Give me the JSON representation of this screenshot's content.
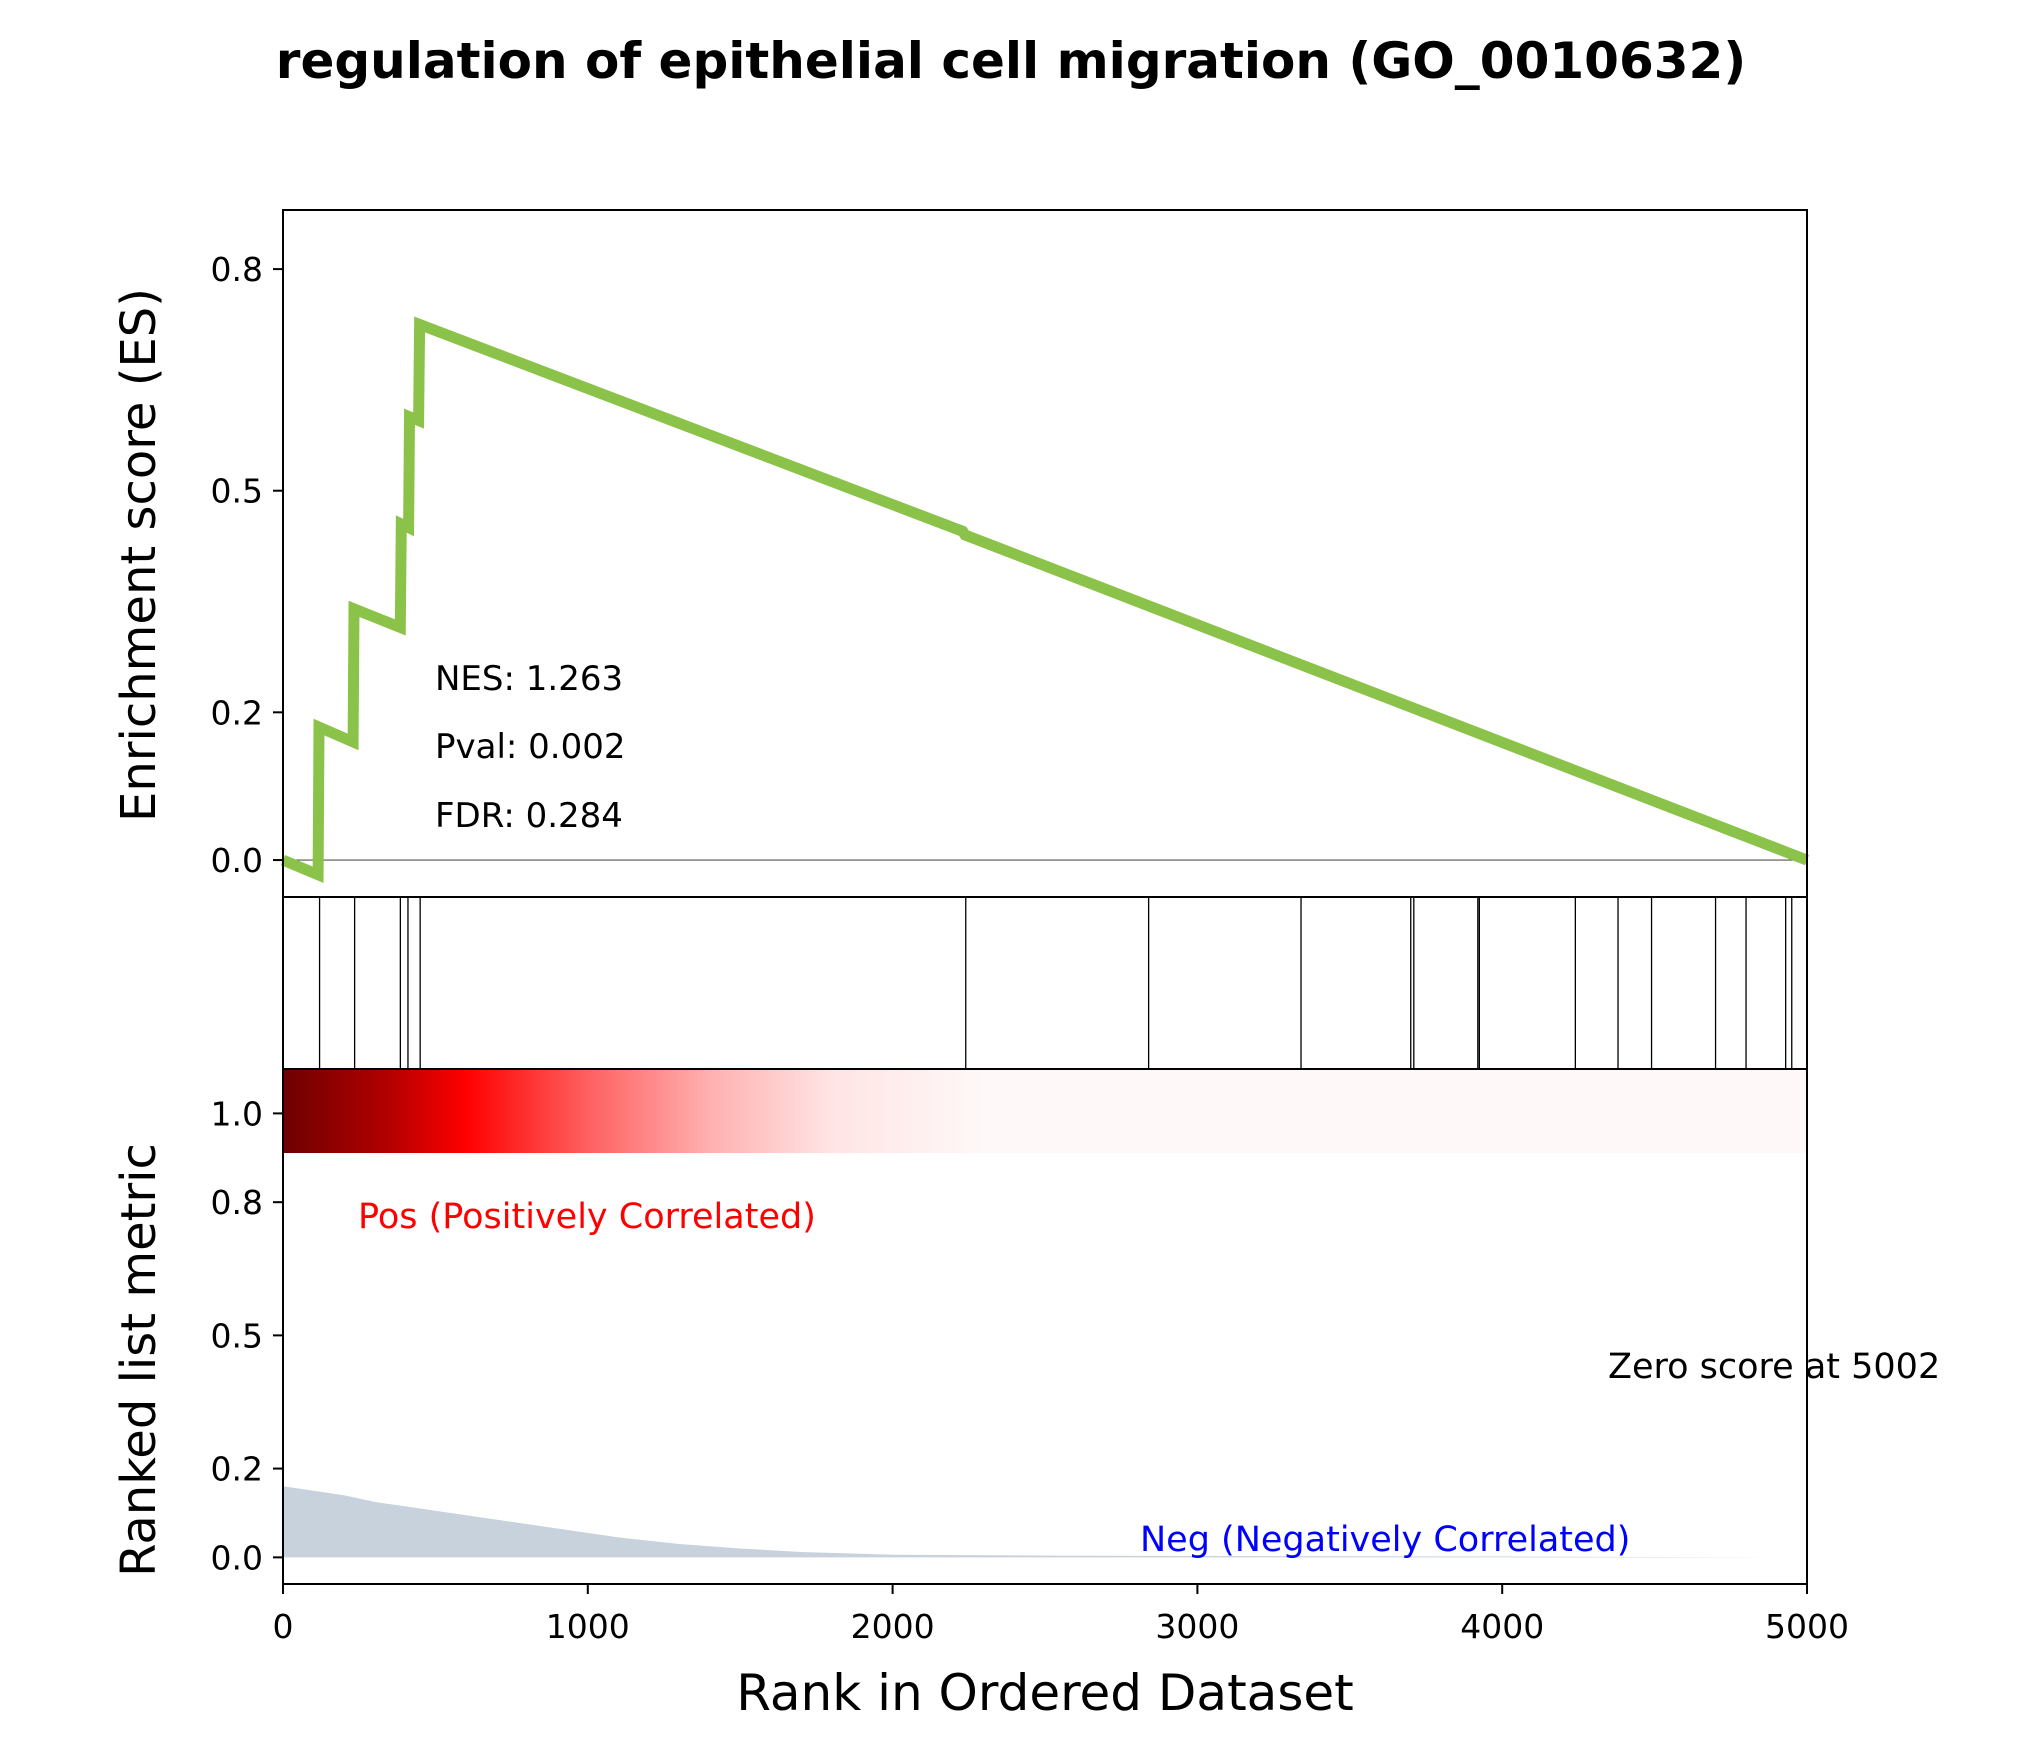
{
  "chart_data": {
    "type": "line",
    "title": "regulation of epithelial cell migration (GO_0010632)",
    "xlabel": "Rank in Ordered Dataset",
    "xlim": [
      0,
      5000
    ],
    "xticks": [
      0,
      1000,
      2000,
      3000,
      4000,
      5000
    ],
    "es_panel": {
      "ylabel": "Enrichment score (ES)",
      "ylim": [
        -0.05,
        0.88
      ],
      "yticks": [
        0.0,
        0.2,
        0.5,
        0.8
      ],
      "ytick_labels": [
        "0.0",
        "0.2",
        "0.5",
        "0.8"
      ],
      "baseline": 0.0,
      "line_color": "#8bc34a",
      "series": [
        {
          "x": [
            0,
            115,
            118,
            230,
            233,
            385,
            388,
            412,
            415,
            445,
            448,
            2230,
            2238,
            5000
          ],
          "y": [
            0.0,
            -0.02,
            0.18,
            0.16,
            0.34,
            0.315,
            0.455,
            0.45,
            0.6,
            0.595,
            0.725,
            0.445,
            0.44,
            0.0
          ]
        }
      ],
      "annotations": [
        "NES: 1.263",
        "Pval: 0.002",
        "FDR: 0.284"
      ]
    },
    "hits": [
      120,
      235,
      385,
      410,
      450,
      2240,
      2840,
      3340,
      3700,
      3710,
      3920,
      3925,
      4240,
      4380,
      4490,
      4700,
      4800,
      4930,
      4950
    ],
    "metric_panel": {
      "ylabel": "Ranked list metric",
      "ylim": [
        -0.06,
        1.1
      ],
      "yticks": [
        0.0,
        0.2,
        0.5,
        0.8,
        1.0
      ],
      "ytick_labels": [
        "0.0",
        "0.2",
        "0.5",
        "0.8",
        "1.0"
      ],
      "fill_color": "#c8d2dc",
      "series": [
        {
          "x": [
            0,
            100,
            200,
            300,
            400,
            500,
            700,
            900,
            1100,
            1300,
            1500,
            1700,
            2000,
            2500,
            3000,
            4000,
            5000
          ],
          "y": [
            0.16,
            0.15,
            0.14,
            0.125,
            0.115,
            0.105,
            0.085,
            0.065,
            0.045,
            0.03,
            0.02,
            0.012,
            0.006,
            0.004,
            0.003,
            0.002,
            0.0
          ]
        }
      ],
      "pos_label": "Pos (Positively Correlated)",
      "pos_color": "#ff0000",
      "neg_label": "Neg (Negatively Correlated)",
      "neg_color": "#0000ff",
      "zero_label": "Zero score at 5002"
    }
  }
}
